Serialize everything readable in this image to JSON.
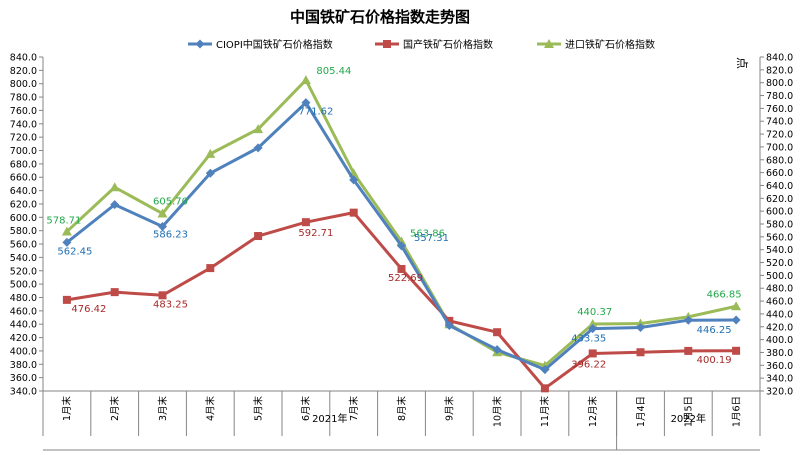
{
  "chart_data": {
    "type": "line",
    "title": "中国铁矿石价格指数走势图",
    "categories": [
      "1月末",
      "2月末",
      "3月末",
      "4月末",
      "5月末",
      "6月末",
      "7月末",
      "8月末",
      "9月末",
      "10月末",
      "11月末",
      "12月末",
      "1月4日",
      "1月5日",
      "1月6日"
    ],
    "year_groups": [
      {
        "label": "2021年",
        "from": 0,
        "to": 11
      },
      {
        "label": "2022年",
        "from": 12,
        "to": 14
      }
    ],
    "left_axis": {
      "min": 340,
      "max": 840,
      "step": 20
    },
    "right_axis": {
      "min": 320,
      "max": 840,
      "step": 20,
      "label": "点"
    },
    "grid": false,
    "legend_position": "top",
    "series": [
      {
        "name": "CIOPI中国铁矿石价格指数",
        "color": "#4f81bd",
        "label_color": "#1f6fb2",
        "marker": "diamond",
        "values": [
          562.45,
          619,
          586.23,
          666,
          704,
          771.62,
          656,
          557.31,
          438,
          402,
          372,
          433.35,
          435,
          446,
          446.25
        ],
        "labels": [
          {
            "index": 0,
            "text": "562.45"
          },
          {
            "index": 2,
            "text": "586.23"
          },
          {
            "index": 5,
            "text": "771.62"
          },
          {
            "index": 7,
            "text": "557.31"
          },
          {
            "index": 11,
            "text": "433.35"
          },
          {
            "index": 14,
            "text": "446.25"
          }
        ]
      },
      {
        "name": "国产铁矿石价格指数",
        "color": "#be4b48",
        "label_color": "#a52a2a",
        "marker": "square",
        "values": [
          476.42,
          488,
          483.25,
          524,
          572,
          592.71,
          607,
          522.69,
          445,
          428,
          344,
          396.22,
          398,
          400,
          400.19
        ],
        "labels": [
          {
            "index": 0,
            "text": "476.42"
          },
          {
            "index": 2,
            "text": "483.25"
          },
          {
            "index": 5,
            "text": "592.71"
          },
          {
            "index": 7,
            "text": "522.69"
          },
          {
            "index": 11,
            "text": "396.22"
          },
          {
            "index": 14,
            "text": "400.19"
          }
        ]
      },
      {
        "name": "进口铁矿石价格指数",
        "color": "#9bbb59",
        "label_color": "#22a84a",
        "marker": "triangle",
        "values": [
          578.71,
          645,
          605.7,
          695,
          732,
          805.44,
          666,
          563.86,
          440,
          398,
          378,
          440.37,
          441,
          451,
          466.85
        ],
        "labels": [
          {
            "index": 0,
            "text": "578.71"
          },
          {
            "index": 2,
            "text": "605.70"
          },
          {
            "index": 5,
            "text": "805.44"
          },
          {
            "index": 7,
            "text": "563.86"
          },
          {
            "index": 11,
            "text": "440.37"
          },
          {
            "index": 14,
            "text": "466.85"
          }
        ]
      }
    ]
  }
}
